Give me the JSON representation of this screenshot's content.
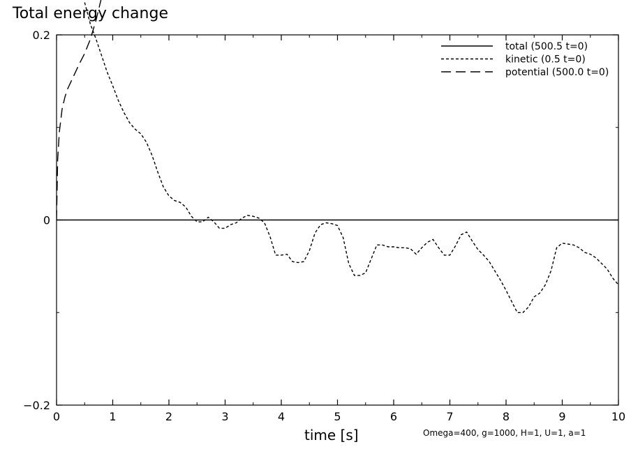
{
  "chart_data": {
    "type": "line",
    "title": "Total energy change",
    "xlabel": "time [s]",
    "ylabel": "",
    "xlim": [
      0,
      10
    ],
    "ylim": [
      -0.2,
      0.2
    ],
    "x_ticks": [
      0,
      1,
      2,
      3,
      4,
      5,
      6,
      7,
      8,
      9,
      10
    ],
    "x_tick_labels": [
      "0",
      "1",
      "2",
      "3",
      "4",
      "5",
      "6",
      "7",
      "8",
      "9",
      "10"
    ],
    "y_ticks": [
      -0.2,
      0,
      0.2
    ],
    "y_tick_labels": [
      "−0.2",
      "0",
      "0.2"
    ],
    "legend_placement": "top-right",
    "footnote": "Omega=400, g=1000, H=1, U=1, a=1",
    "series": [
      {
        "name": "total (500.5 t=0)",
        "style": "solid",
        "x": [
          0,
          0.5,
          1,
          1.5,
          2,
          2.5,
          3,
          3.5,
          4,
          4.5,
          5,
          5.5,
          6,
          6.5,
          7,
          7.5,
          8,
          8.5,
          9,
          9.5,
          10
        ],
        "y": [
          0,
          0,
          0,
          0,
          0,
          0,
          0,
          0,
          0,
          0,
          0,
          0,
          0,
          0,
          0,
          0,
          0,
          0,
          0,
          0,
          0
        ]
      },
      {
        "name": "kinetic (0.5 t=0)",
        "style": "dotted",
        "x": [
          0.5,
          0.6,
          0.7,
          0.8,
          0.9,
          1.0,
          1.1,
          1.2,
          1.3,
          1.4,
          1.5,
          1.6,
          1.7,
          1.8,
          1.9,
          2.0,
          2.1,
          2.2,
          2.3,
          2.4,
          2.5,
          2.6,
          2.7,
          2.8,
          2.9,
          3.0,
          3.1,
          3.2,
          3.3,
          3.4,
          3.5,
          3.6,
          3.7,
          3.8,
          3.9,
          4.0,
          4.1,
          4.2,
          4.3,
          4.4,
          4.5,
          4.6,
          4.7,
          4.8,
          4.9,
          5.0,
          5.1,
          5.2,
          5.3,
          5.4,
          5.5,
          5.6,
          5.7,
          5.8,
          5.9,
          6.0,
          6.1,
          6.2,
          6.3,
          6.4,
          6.5,
          6.6,
          6.7,
          6.8,
          6.9,
          7.0,
          7.1,
          7.2,
          7.3,
          7.4,
          7.5,
          7.6,
          7.7,
          7.8,
          7.9,
          8.0,
          8.1,
          8.2,
          8.3,
          8.4,
          8.5,
          8.6,
          8.7,
          8.8,
          8.9,
          9.0,
          9.1,
          9.2,
          9.3,
          9.4,
          9.5,
          9.6,
          9.7,
          9.8,
          9.9,
          10.0
        ],
        "y": [
          0.235,
          0.212,
          0.196,
          0.178,
          0.16,
          0.145,
          0.129,
          0.116,
          0.105,
          0.098,
          0.093,
          0.084,
          0.07,
          0.052,
          0.036,
          0.026,
          0.021,
          0.019,
          0.014,
          0.004,
          -0.002,
          -0.002,
          0.003,
          -0.002,
          -0.009,
          -0.009,
          -0.005,
          -0.003,
          0.002,
          0.005,
          0.004,
          0.002,
          -0.003,
          -0.018,
          -0.038,
          -0.038,
          -0.037,
          -0.045,
          -0.046,
          -0.045,
          -0.033,
          -0.014,
          -0.005,
          -0.003,
          -0.004,
          -0.006,
          -0.019,
          -0.047,
          -0.06,
          -0.06,
          -0.057,
          -0.042,
          -0.027,
          -0.027,
          -0.029,
          -0.029,
          -0.03,
          -0.03,
          -0.031,
          -0.037,
          -0.03,
          -0.024,
          -0.021,
          -0.03,
          -0.038,
          -0.038,
          -0.028,
          -0.016,
          -0.013,
          -0.023,
          -0.032,
          -0.038,
          -0.045,
          -0.055,
          -0.065,
          -0.076,
          -0.088,
          -0.1,
          -0.1,
          -0.094,
          -0.083,
          -0.079,
          -0.07,
          -0.055,
          -0.03,
          -0.025,
          -0.026,
          -0.027,
          -0.03,
          -0.035,
          -0.037,
          -0.041,
          -0.047,
          -0.053,
          -0.063,
          -0.07
        ]
      },
      {
        "name": "potential (500.0 t=0)",
        "style": "dashed",
        "x": [
          0,
          0.02,
          0.05,
          0.1,
          0.15,
          0.2,
          0.3,
          0.4,
          0.5,
          0.6,
          0.7,
          0.8
        ],
        "y": [
          0,
          0.065,
          0.095,
          0.12,
          0.133,
          0.142,
          0.155,
          0.168,
          0.18,
          0.195,
          0.215,
          0.24
        ]
      }
    ]
  }
}
